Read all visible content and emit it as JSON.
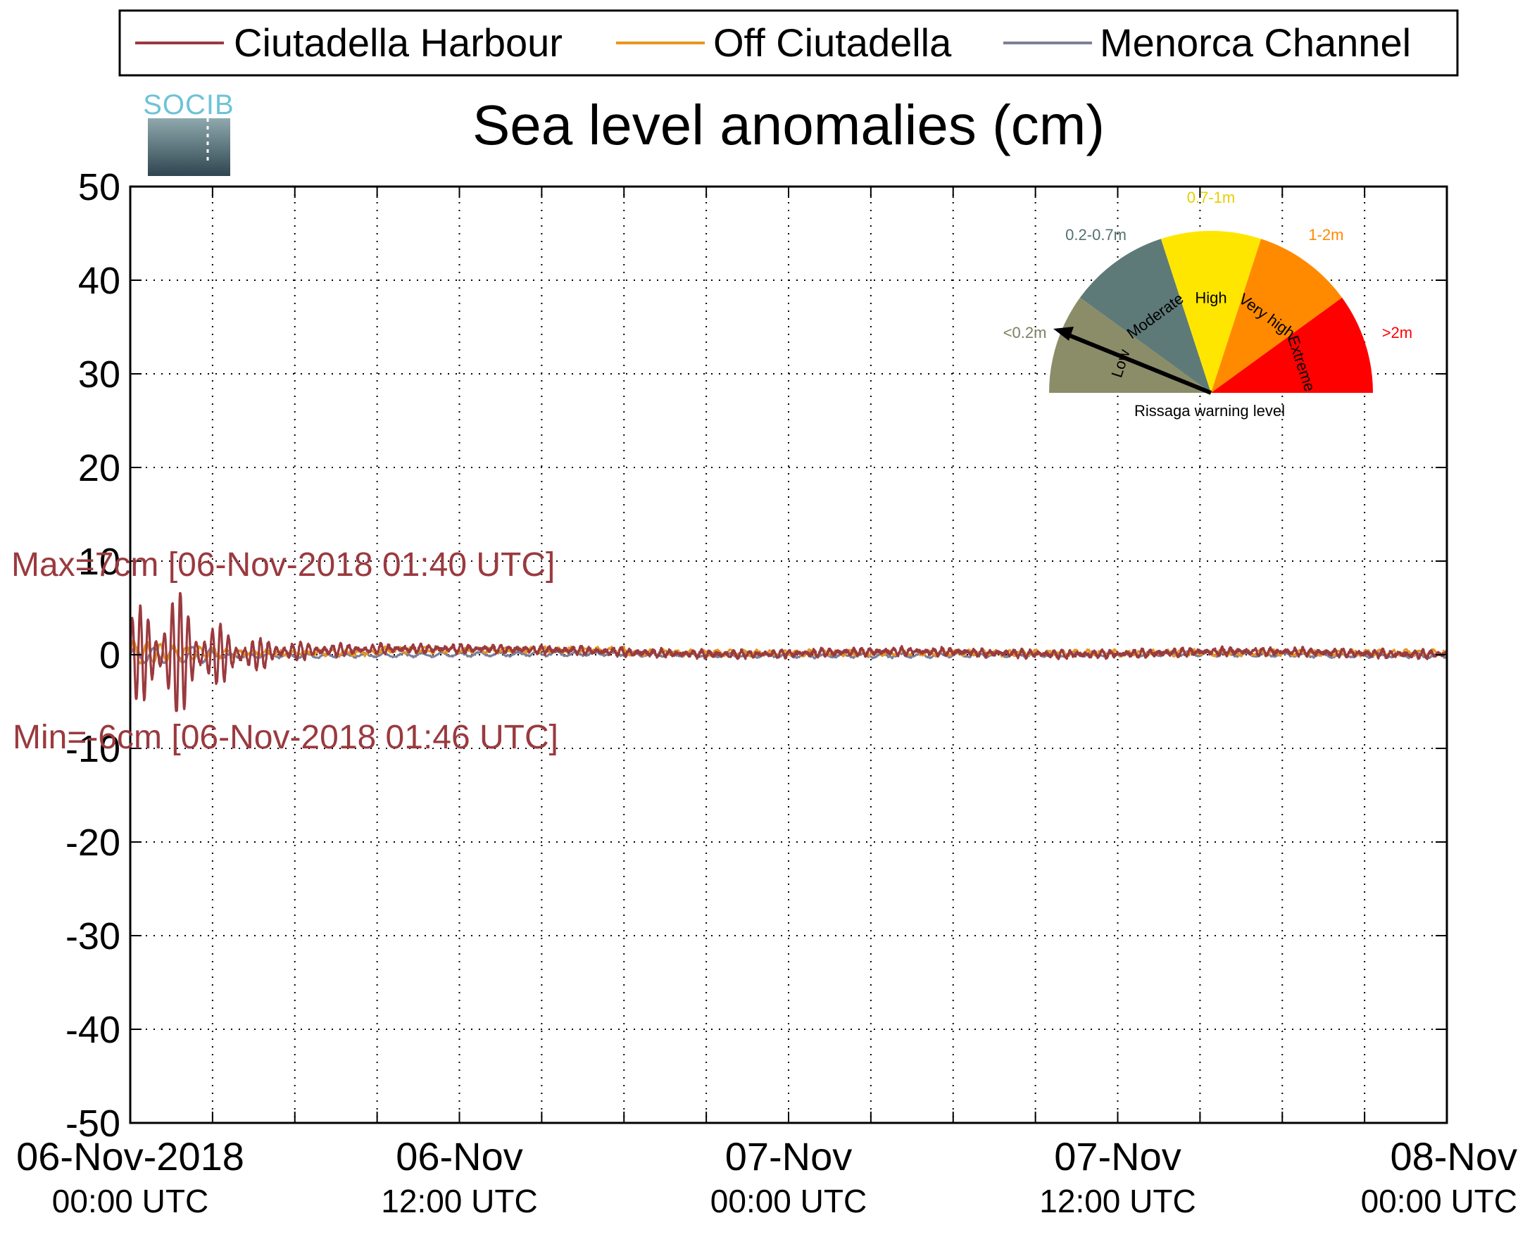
{
  "chart_data": {
    "type": "line",
    "title": "Sea level anomalies (cm)",
    "xlabel": "",
    "ylabel": "",
    "ylim": [
      -50,
      50
    ],
    "yticks": [
      50,
      40,
      30,
      20,
      10,
      0,
      -10,
      -20,
      -30,
      -40,
      -50
    ],
    "xlim_hours": [
      0,
      48
    ],
    "xtick_labels": [
      {
        "date": "06-Nov-2018",
        "time": "00:00 UTC"
      },
      {
        "date": "06-Nov",
        "time": "12:00 UTC"
      },
      {
        "date": "07-Nov",
        "time": "00:00 UTC"
      },
      {
        "date": "07-Nov",
        "time": "12:00 UTC"
      },
      {
        "date": "08-Nov",
        "time": "00:00 UTC"
      }
    ],
    "grid": true,
    "legend_position": "top",
    "series": [
      {
        "name": "Ciutadella Harbour",
        "color": "#9a3a3f"
      },
      {
        "name": "Off Ciutadella",
        "color": "#e8951f"
      },
      {
        "name": "Menorca Channel",
        "color": "#7a7f9a"
      }
    ],
    "annotations": {
      "max": "Max=7cm [06-Nov-2018 01:40 UTC]",
      "min": "Min=-6cm [06-Nov-2018 01:46 UTC]",
      "color": "#9a3a3f"
    },
    "max_cm": 7,
    "min_cm": -6
  },
  "logo": {
    "text": "SOCIB"
  },
  "gauge": {
    "caption": "Rissaga warning level",
    "level_value": "Low",
    "sectors": [
      {
        "name": "Low",
        "range": "<0.2m",
        "color": "#8b8d68",
        "range_color": "#7d8060"
      },
      {
        "name": "Moderate",
        "range": "0.2-0.7m",
        "color": "#5e7a78",
        "range_color": "#55716f"
      },
      {
        "name": "High",
        "range": "0.7-1m",
        "color": "#ffe600",
        "range_color": "#e6cf00"
      },
      {
        "name": "Very high",
        "range": "1-2m",
        "color": "#ff8a00",
        "range_color": "#ff8a00"
      },
      {
        "name": "Extreme",
        "range": ">2m",
        "color": "#ff0000",
        "range_color": "#ff0000"
      }
    ]
  }
}
